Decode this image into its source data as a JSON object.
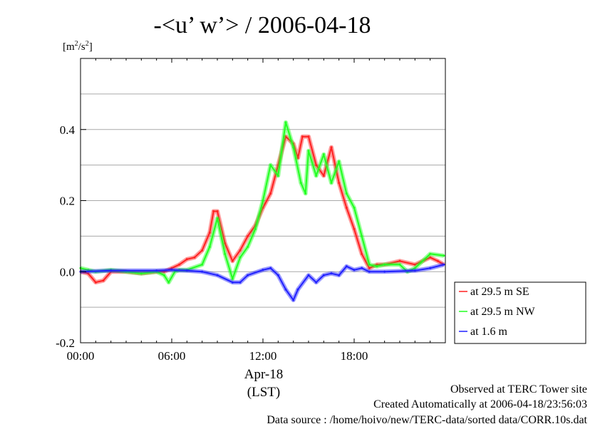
{
  "chart_data": {
    "type": "line",
    "title": "-<u’ w’> / 2006-04-18",
    "ylabel": "[m2/s2]",
    "ylabel_parts": {
      "base1": "[m",
      "sup1": "2",
      "mid": "/s",
      "sup2": "2",
      "end": "]"
    },
    "xlabel_lines": [
      "Apr-18",
      "(LST)"
    ],
    "xlim": [
      0,
      24
    ],
    "ylim": [
      -0.2,
      0.6
    ],
    "x_ticks": [
      {
        "v": 0,
        "label": "00:00"
      },
      {
        "v": 6,
        "label": "06:00"
      },
      {
        "v": 12,
        "label": "12:00"
      },
      {
        "v": 18,
        "label": "18:00"
      }
    ],
    "y_ticks": [
      {
        "v": -0.2,
        "label": "-0.2"
      },
      {
        "v": 0.0,
        "label": "0.0"
      },
      {
        "v": 0.2,
        "label": "0.2"
      },
      {
        "v": 0.4,
        "label": "0.4"
      }
    ],
    "grid": true,
    "legend_position": "right",
    "series": [
      {
        "name": "at 29.5 m SE",
        "color": "#ff2020",
        "points": [
          [
            0,
            0
          ],
          [
            0.5,
            -0.005
          ],
          [
            1,
            -0.03
          ],
          [
            1.5,
            -0.025
          ],
          [
            2,
            0
          ],
          [
            3,
            0
          ],
          [
            4,
            -0.005
          ],
          [
            5,
            0
          ],
          [
            5.5,
            0
          ],
          [
            6,
            0.01
          ],
          [
            6.5,
            0.02
          ],
          [
            7,
            0.035
          ],
          [
            7.5,
            0.04
          ],
          [
            8,
            0.06
          ],
          [
            8.5,
            0.11
          ],
          [
            8.75,
            0.17
          ],
          [
            9,
            0.17
          ],
          [
            9.5,
            0.08
          ],
          [
            10,
            0.03
          ],
          [
            10.5,
            0.06
          ],
          [
            11,
            0.1
          ],
          [
            11.5,
            0.13
          ],
          [
            12,
            0.18
          ],
          [
            12.5,
            0.22
          ],
          [
            13,
            0.3
          ],
          [
            13.5,
            0.38
          ],
          [
            14,
            0.36
          ],
          [
            14.3,
            0.32
          ],
          [
            14.6,
            0.38
          ],
          [
            15,
            0.38
          ],
          [
            15.5,
            0.3
          ],
          [
            16,
            0.27
          ],
          [
            16.5,
            0.35
          ],
          [
            17,
            0.25
          ],
          [
            17.5,
            0.18
          ],
          [
            18,
            0.12
          ],
          [
            18.5,
            0.05
          ],
          [
            19,
            0.01
          ],
          [
            19.5,
            0.02
          ],
          [
            20,
            0.02
          ],
          [
            21,
            0.03
          ],
          [
            22,
            0.02
          ],
          [
            23,
            0.04
          ],
          [
            23.5,
            0.03
          ],
          [
            23.9,
            0.02
          ]
        ]
      },
      {
        "name": "at 29.5 m NW",
        "color": "#20ff20",
        "points": [
          [
            0,
            0.01
          ],
          [
            0.5,
            0.005
          ],
          [
            1,
            0
          ],
          [
            2,
            0.005
          ],
          [
            3,
            0
          ],
          [
            4,
            -0.005
          ],
          [
            5,
            0
          ],
          [
            5.5,
            -0.01
          ],
          [
            5.8,
            -0.03
          ],
          [
            6.2,
            0
          ],
          [
            6.5,
            0.005
          ],
          [
            7,
            0.005
          ],
          [
            8,
            0.02
          ],
          [
            8.5,
            0.07
          ],
          [
            9,
            0.15
          ],
          [
            9.5,
            0.05
          ],
          [
            10,
            -0.02
          ],
          [
            10.5,
            0.04
          ],
          [
            11,
            0.07
          ],
          [
            11.5,
            0.12
          ],
          [
            12,
            0.2
          ],
          [
            12.5,
            0.3
          ],
          [
            13,
            0.27
          ],
          [
            13.5,
            0.42
          ],
          [
            14,
            0.35
          ],
          [
            14.5,
            0.25
          ],
          [
            14.8,
            0.22
          ],
          [
            15,
            0.34
          ],
          [
            15.5,
            0.27
          ],
          [
            16,
            0.33
          ],
          [
            16.5,
            0.25
          ],
          [
            17,
            0.31
          ],
          [
            17.5,
            0.22
          ],
          [
            18,
            0.18
          ],
          [
            18.5,
            0.1
          ],
          [
            19,
            0.02
          ],
          [
            19.5,
            0.015
          ],
          [
            20,
            0.02
          ],
          [
            21,
            0.02
          ],
          [
            21.5,
            0
          ],
          [
            22,
            0.01
          ],
          [
            23,
            0.05
          ],
          [
            23.9,
            0.045
          ]
        ]
      },
      {
        "name": "at 1.6 m",
        "color": "#2020ff",
        "points": [
          [
            0,
            0
          ],
          [
            2,
            0.003
          ],
          [
            5,
            0.003
          ],
          [
            6,
            0.005
          ],
          [
            7,
            0.003
          ],
          [
            8,
            0
          ],
          [
            9,
            -0.01
          ],
          [
            10,
            -0.03
          ],
          [
            10.5,
            -0.03
          ],
          [
            11,
            -0.01
          ],
          [
            12,
            0.005
          ],
          [
            12.5,
            0.01
          ],
          [
            13,
            -0.01
          ],
          [
            13.5,
            -0.05
          ],
          [
            14,
            -0.08
          ],
          [
            14.3,
            -0.05
          ],
          [
            15,
            -0.01
          ],
          [
            15.5,
            -0.03
          ],
          [
            16,
            -0.01
          ],
          [
            16.5,
            -0.005
          ],
          [
            17,
            -0.01
          ],
          [
            17.5,
            0.015
          ],
          [
            18,
            0.005
          ],
          [
            18.5,
            0.01
          ],
          [
            19,
            0
          ],
          [
            20,
            0
          ],
          [
            22,
            0.003
          ],
          [
            23,
            0.01
          ],
          [
            23.9,
            0.02
          ]
        ]
      }
    ]
  },
  "footer": {
    "line1": "Observed at TERC Tower site",
    "line2": "Created Automatically at 2006-04-18/23:56:03",
    "line3": "Data source : /home/hoivo/new/TERC-data/sorted  data/CORR.10s.dat"
  }
}
